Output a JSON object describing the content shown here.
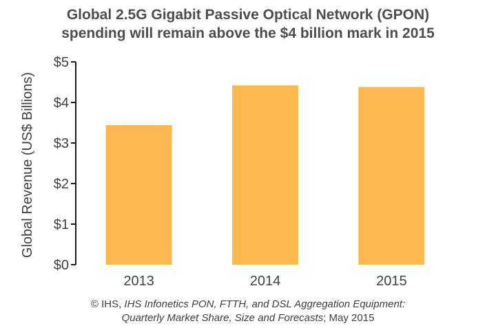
{
  "chart_data": {
    "type": "bar",
    "title": "Global 2.5G Gigabit Passive Optical Network (GPON)",
    "subtitle": "spending will remain above the $4 billion mark in 2015",
    "xlabel": "",
    "ylabel": "Global Revenue (US$ Billions)",
    "categories": [
      "2013",
      "2014",
      "2015"
    ],
    "values": [
      3.44,
      4.42,
      4.38
    ],
    "ylim": [
      0,
      5
    ],
    "yticks": [
      "$0",
      "$1",
      "$2",
      "$3",
      "$4",
      "$5"
    ],
    "grid": false,
    "colors": {
      "bar": "#fbb850",
      "axis": "#1a1a1a"
    }
  },
  "source": {
    "prefix": "© IHS, ",
    "publication_line1": "IHS Infonetics PON, FTTH, and DSL Aggregation Equipment:",
    "publication_line2": "Quarterly Market Share, Size and Forecasts",
    "suffix": "; May 2015"
  }
}
